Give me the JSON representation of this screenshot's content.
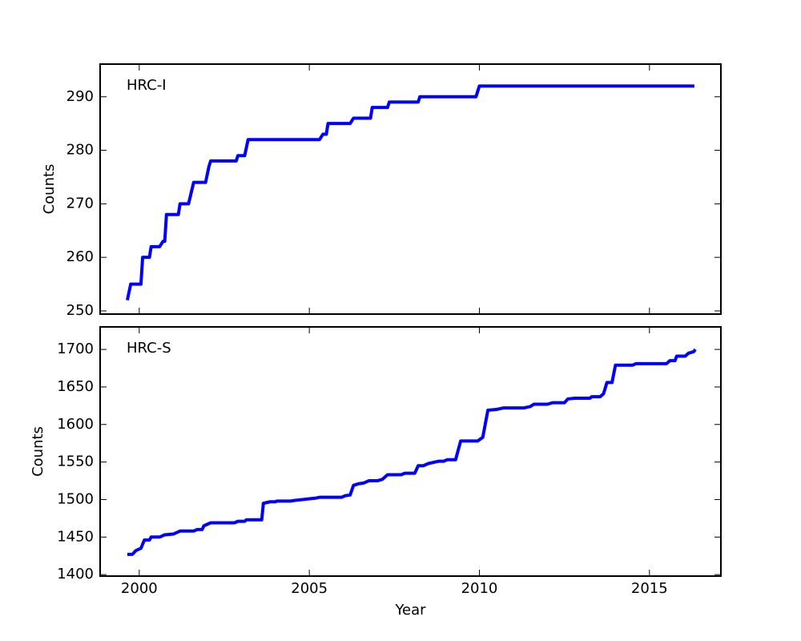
{
  "chart_data": [
    {
      "type": "line",
      "annotation": "HRC-I",
      "ylabel": "Counts",
      "color": "#0000ff",
      "xlim": [
        1998.85,
        2017.1
      ],
      "ylim": [
        249.4,
        296.1
      ],
      "yticks": [
        250,
        260,
        270,
        280,
        290
      ],
      "x": [
        1999.65,
        1999.75,
        2000.05,
        2000.1,
        2000.3,
        2000.35,
        2000.6,
        2000.7,
        2000.75,
        2000.8,
        2001.15,
        2001.2,
        2001.45,
        2001.6,
        2001.95,
        2002.05,
        2002.1,
        2002.85,
        2002.9,
        2003.1,
        2003.2,
        2005.3,
        2005.4,
        2005.5,
        2005.55,
        2006.2,
        2006.3,
        2006.8,
        2006.85,
        2007.3,
        2007.35,
        2008.2,
        2008.25,
        2009.9,
        2010.0,
        2016.32
      ],
      "values": [
        252,
        255,
        255,
        260,
        260,
        262,
        262,
        263,
        263,
        268,
        268,
        270,
        270,
        274,
        274,
        277,
        278,
        278,
        279,
        279,
        282,
        282,
        283,
        283,
        285,
        285,
        286,
        286,
        288,
        288,
        289,
        289,
        290,
        290,
        292,
        292
      ]
    },
    {
      "type": "line",
      "annotation": "HRC-S",
      "ylabel": "Counts",
      "xlabel": "Year",
      "color": "#0000ff",
      "xlim": [
        1998.85,
        2017.1
      ],
      "ylim": [
        1398,
        1730
      ],
      "yticks": [
        1400,
        1450,
        1500,
        1550,
        1600,
        1650,
        1700
      ],
      "xticks": [
        2000,
        2005,
        2010,
        2015
      ],
      "x": [
        1999.65,
        1999.8,
        1999.9,
        2000.05,
        2000.15,
        2000.3,
        2000.35,
        2000.6,
        2000.75,
        2001.0,
        2001.1,
        2001.2,
        2001.6,
        2001.7,
        2001.85,
        2001.9,
        2002.1,
        2002.8,
        2002.9,
        2003.1,
        2003.15,
        2003.6,
        2003.65,
        2003.85,
        2004.0,
        2004.05,
        2004.45,
        2004.6,
        2004.8,
        2005.0,
        2005.2,
        2005.3,
        2005.95,
        2006.05,
        2006.2,
        2006.3,
        2006.45,
        2006.6,
        2006.75,
        2007.0,
        2007.15,
        2007.3,
        2007.7,
        2007.8,
        2008.1,
        2008.2,
        2008.35,
        2008.5,
        2008.8,
        2008.95,
        2009.05,
        2009.3,
        2009.45,
        2009.6,
        2009.95,
        2010.1,
        2010.25,
        2010.5,
        2010.7,
        2011.3,
        2011.5,
        2011.6,
        2012.0,
        2012.15,
        2012.5,
        2012.6,
        2012.8,
        2013.25,
        2013.3,
        2013.55,
        2013.65,
        2013.75,
        2013.9,
        2014.0,
        2014.5,
        2014.6,
        2015.5,
        2015.6,
        2015.75,
        2015.8,
        2016.05,
        2016.15,
        2016.3,
        2016.35
      ],
      "values": [
        1427,
        1427,
        1432,
        1435,
        1446,
        1446,
        1450,
        1450,
        1453,
        1454,
        1456,
        1458,
        1458,
        1460,
        1460,
        1465,
        1469,
        1469,
        1471,
        1471,
        1473,
        1473,
        1495,
        1497,
        1497,
        1498,
        1498,
        1499,
        1500,
        1501,
        1502,
        1503,
        1503,
        1505,
        1506,
        1519,
        1521,
        1522,
        1525,
        1525,
        1527,
        1533,
        1533,
        1535,
        1535,
        1545,
        1545,
        1548,
        1551,
        1551,
        1553,
        1553,
        1578,
        1578,
        1578,
        1583,
        1619,
        1620,
        1622,
        1622,
        1624,
        1627,
        1627,
        1629,
        1629,
        1634,
        1635,
        1635,
        1637,
        1637,
        1641,
        1656,
        1656,
        1679,
        1679,
        1681,
        1681,
        1685,
        1685,
        1691,
        1691,
        1695,
        1697,
        1700
      ]
    }
  ]
}
